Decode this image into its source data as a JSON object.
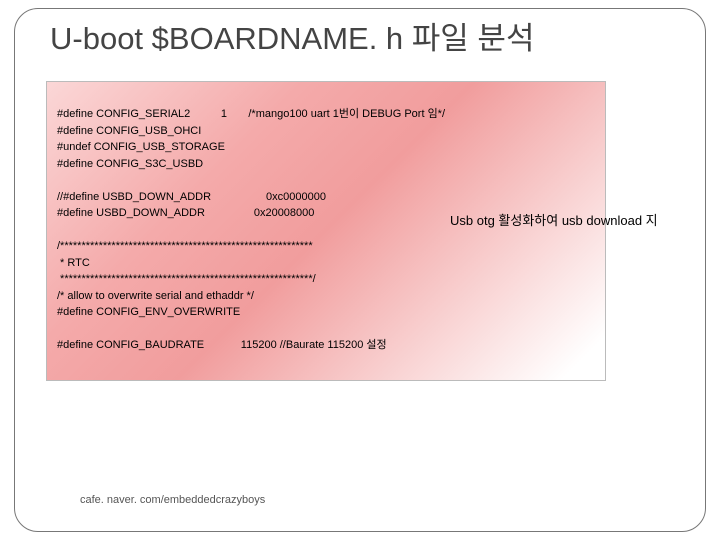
{
  "title": "U-boot  $BOARDNAME. h 파일 분석",
  "side_note": "Usb otg 활성화하여 usb download 지",
  "code": {
    "line1": "#define CONFIG_SERIAL2          1       /*mango100 uart 1번이 DEBUG Port 임*/",
    "line2": "#define CONFIG_USB_OHCI",
    "line3": "#undef CONFIG_USB_STORAGE",
    "line4": "#define CONFIG_S3C_USBD",
    "blank1": "",
    "line5": "//#define USBD_DOWN_ADDR                  0xc0000000",
    "line6": "#define USBD_DOWN_ADDR                0x20008000",
    "blank2": "",
    "line7": "/***********************************************************",
    "line8": " * RTC",
    "line9": " ***********************************************************/",
    "line10": "/* allow to overwrite serial and ethaddr */",
    "line11": "#define CONFIG_ENV_OVERWRITE",
    "blank3": "",
    "line12": "#define CONFIG_BAUDRATE            115200 //Baurate 115200 설정"
  },
  "footer": "cafe. naver. com/embeddedcrazyboys"
}
